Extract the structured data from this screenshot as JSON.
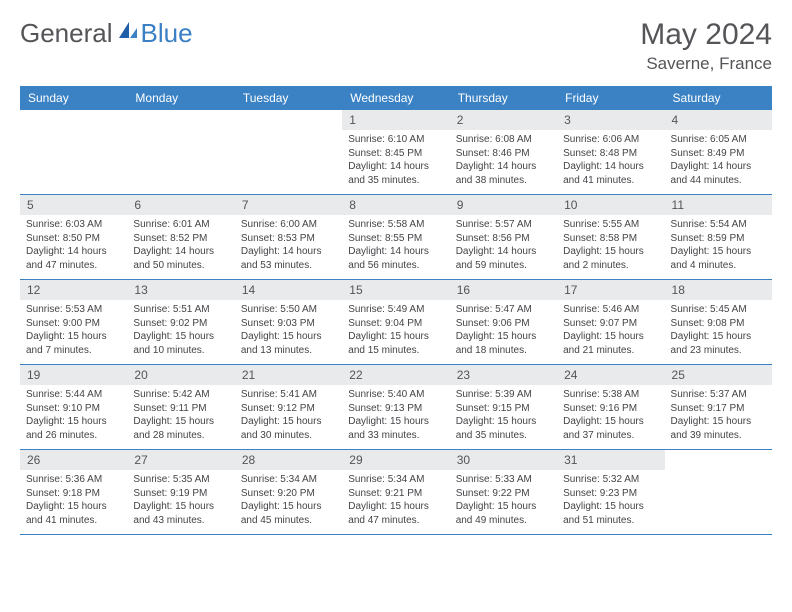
{
  "brand": {
    "general": "General",
    "blue": "Blue"
  },
  "title": "May 2024",
  "location": "Saverne, France",
  "colors": {
    "header_bg": "#3b82c4",
    "header_text": "#ffffff",
    "daynum_bg": "#e9eaec",
    "text": "#555559",
    "body_text": "#444448",
    "row_border": "#3b82c4"
  },
  "day_names": [
    "Sunday",
    "Monday",
    "Tuesday",
    "Wednesday",
    "Thursday",
    "Friday",
    "Saturday"
  ],
  "weeks": [
    [
      null,
      null,
      null,
      {
        "n": "1",
        "sr": "6:10 AM",
        "ss": "8:45 PM",
        "dl": "14 hours and 35 minutes."
      },
      {
        "n": "2",
        "sr": "6:08 AM",
        "ss": "8:46 PM",
        "dl": "14 hours and 38 minutes."
      },
      {
        "n": "3",
        "sr": "6:06 AM",
        "ss": "8:48 PM",
        "dl": "14 hours and 41 minutes."
      },
      {
        "n": "4",
        "sr": "6:05 AM",
        "ss": "8:49 PM",
        "dl": "14 hours and 44 minutes."
      }
    ],
    [
      {
        "n": "5",
        "sr": "6:03 AM",
        "ss": "8:50 PM",
        "dl": "14 hours and 47 minutes."
      },
      {
        "n": "6",
        "sr": "6:01 AM",
        "ss": "8:52 PM",
        "dl": "14 hours and 50 minutes."
      },
      {
        "n": "7",
        "sr": "6:00 AM",
        "ss": "8:53 PM",
        "dl": "14 hours and 53 minutes."
      },
      {
        "n": "8",
        "sr": "5:58 AM",
        "ss": "8:55 PM",
        "dl": "14 hours and 56 minutes."
      },
      {
        "n": "9",
        "sr": "5:57 AM",
        "ss": "8:56 PM",
        "dl": "14 hours and 59 minutes."
      },
      {
        "n": "10",
        "sr": "5:55 AM",
        "ss": "8:58 PM",
        "dl": "15 hours and 2 minutes."
      },
      {
        "n": "11",
        "sr": "5:54 AM",
        "ss": "8:59 PM",
        "dl": "15 hours and 4 minutes."
      }
    ],
    [
      {
        "n": "12",
        "sr": "5:53 AM",
        "ss": "9:00 PM",
        "dl": "15 hours and 7 minutes."
      },
      {
        "n": "13",
        "sr": "5:51 AM",
        "ss": "9:02 PM",
        "dl": "15 hours and 10 minutes."
      },
      {
        "n": "14",
        "sr": "5:50 AM",
        "ss": "9:03 PM",
        "dl": "15 hours and 13 minutes."
      },
      {
        "n": "15",
        "sr": "5:49 AM",
        "ss": "9:04 PM",
        "dl": "15 hours and 15 minutes."
      },
      {
        "n": "16",
        "sr": "5:47 AM",
        "ss": "9:06 PM",
        "dl": "15 hours and 18 minutes."
      },
      {
        "n": "17",
        "sr": "5:46 AM",
        "ss": "9:07 PM",
        "dl": "15 hours and 21 minutes."
      },
      {
        "n": "18",
        "sr": "5:45 AM",
        "ss": "9:08 PM",
        "dl": "15 hours and 23 minutes."
      }
    ],
    [
      {
        "n": "19",
        "sr": "5:44 AM",
        "ss": "9:10 PM",
        "dl": "15 hours and 26 minutes."
      },
      {
        "n": "20",
        "sr": "5:42 AM",
        "ss": "9:11 PM",
        "dl": "15 hours and 28 minutes."
      },
      {
        "n": "21",
        "sr": "5:41 AM",
        "ss": "9:12 PM",
        "dl": "15 hours and 30 minutes."
      },
      {
        "n": "22",
        "sr": "5:40 AM",
        "ss": "9:13 PM",
        "dl": "15 hours and 33 minutes."
      },
      {
        "n": "23",
        "sr": "5:39 AM",
        "ss": "9:15 PM",
        "dl": "15 hours and 35 minutes."
      },
      {
        "n": "24",
        "sr": "5:38 AM",
        "ss": "9:16 PM",
        "dl": "15 hours and 37 minutes."
      },
      {
        "n": "25",
        "sr": "5:37 AM",
        "ss": "9:17 PM",
        "dl": "15 hours and 39 minutes."
      }
    ],
    [
      {
        "n": "26",
        "sr": "5:36 AM",
        "ss": "9:18 PM",
        "dl": "15 hours and 41 minutes."
      },
      {
        "n": "27",
        "sr": "5:35 AM",
        "ss": "9:19 PM",
        "dl": "15 hours and 43 minutes."
      },
      {
        "n": "28",
        "sr": "5:34 AM",
        "ss": "9:20 PM",
        "dl": "15 hours and 45 minutes."
      },
      {
        "n": "29",
        "sr": "5:34 AM",
        "ss": "9:21 PM",
        "dl": "15 hours and 47 minutes."
      },
      {
        "n": "30",
        "sr": "5:33 AM",
        "ss": "9:22 PM",
        "dl": "15 hours and 49 minutes."
      },
      {
        "n": "31",
        "sr": "5:32 AM",
        "ss": "9:23 PM",
        "dl": "15 hours and 51 minutes."
      },
      null
    ]
  ],
  "labels": {
    "sunrise": "Sunrise:",
    "sunset": "Sunset:",
    "daylight": "Daylight:"
  }
}
